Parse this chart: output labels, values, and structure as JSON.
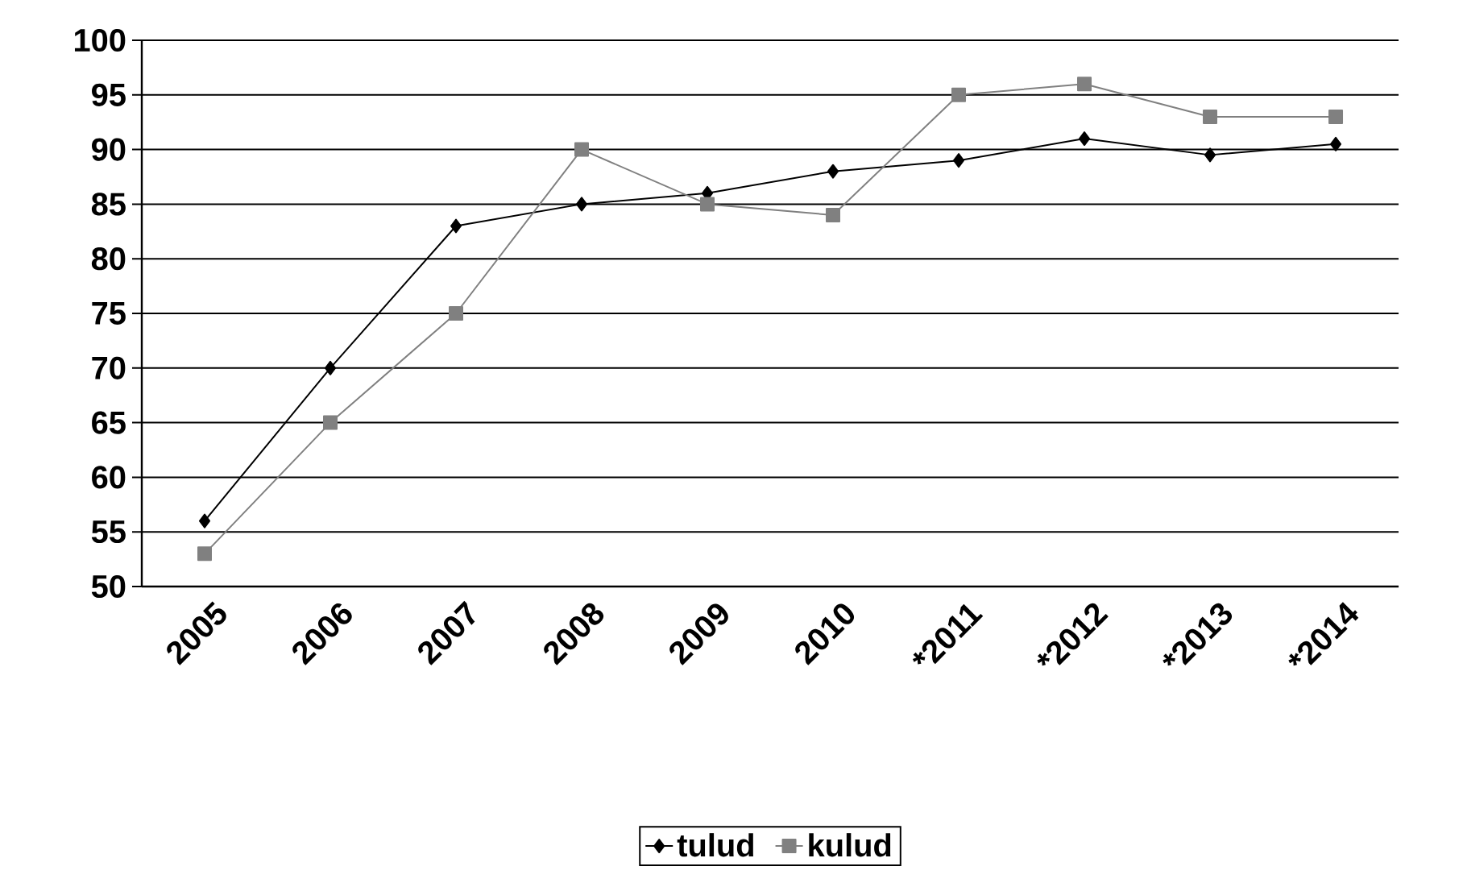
{
  "chart_data": {
    "type": "line",
    "categories": [
      "2005",
      "2006",
      "2007",
      "2008",
      "2009",
      "2010",
      "*2011",
      "*2012",
      "*2013",
      "*2014"
    ],
    "series": [
      {
        "name": "tulud",
        "color": "#000000",
        "marker": "diamond",
        "values": [
          56,
          70,
          83,
          85,
          86,
          88,
          89,
          91,
          89.5,
          90.5
        ]
      },
      {
        "name": "kulud",
        "color": "#808080",
        "marker": "square",
        "values": [
          53,
          65,
          75,
          90,
          85,
          84,
          95,
          96,
          93,
          93
        ]
      }
    ],
    "ylim": [
      50,
      100
    ],
    "yticks": [
      50,
      55,
      60,
      65,
      70,
      75,
      80,
      85,
      90,
      95,
      100
    ],
    "grid": "y",
    "legend": "bottom",
    "line_style": "solid"
  }
}
